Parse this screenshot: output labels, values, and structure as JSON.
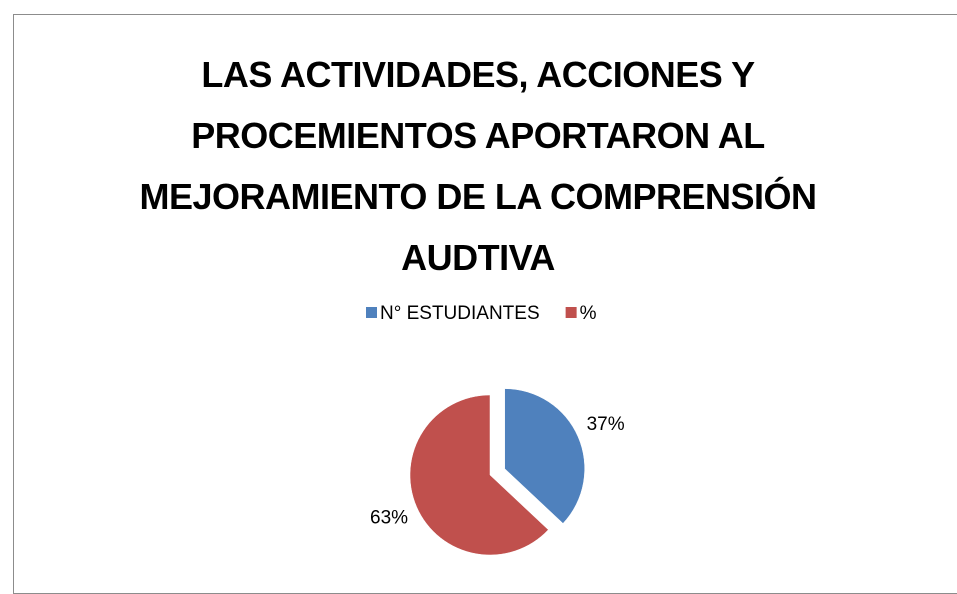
{
  "chart_data": {
    "type": "pie",
    "title": "LAS ACTIVIDADES, ACCIONES Y PROCEMIENTOS APORTARON AL MEJORAMIENTO DE LA COMPRENSIÓN AUDTIVA",
    "categories": [
      "N° ESTUDIANTES",
      "%"
    ],
    "values": [
      37,
      63
    ],
    "value_labels": [
      "37%",
      "63%"
    ],
    "colors": [
      "#4f81bd",
      "#c0504d"
    ],
    "legend": "top"
  }
}
